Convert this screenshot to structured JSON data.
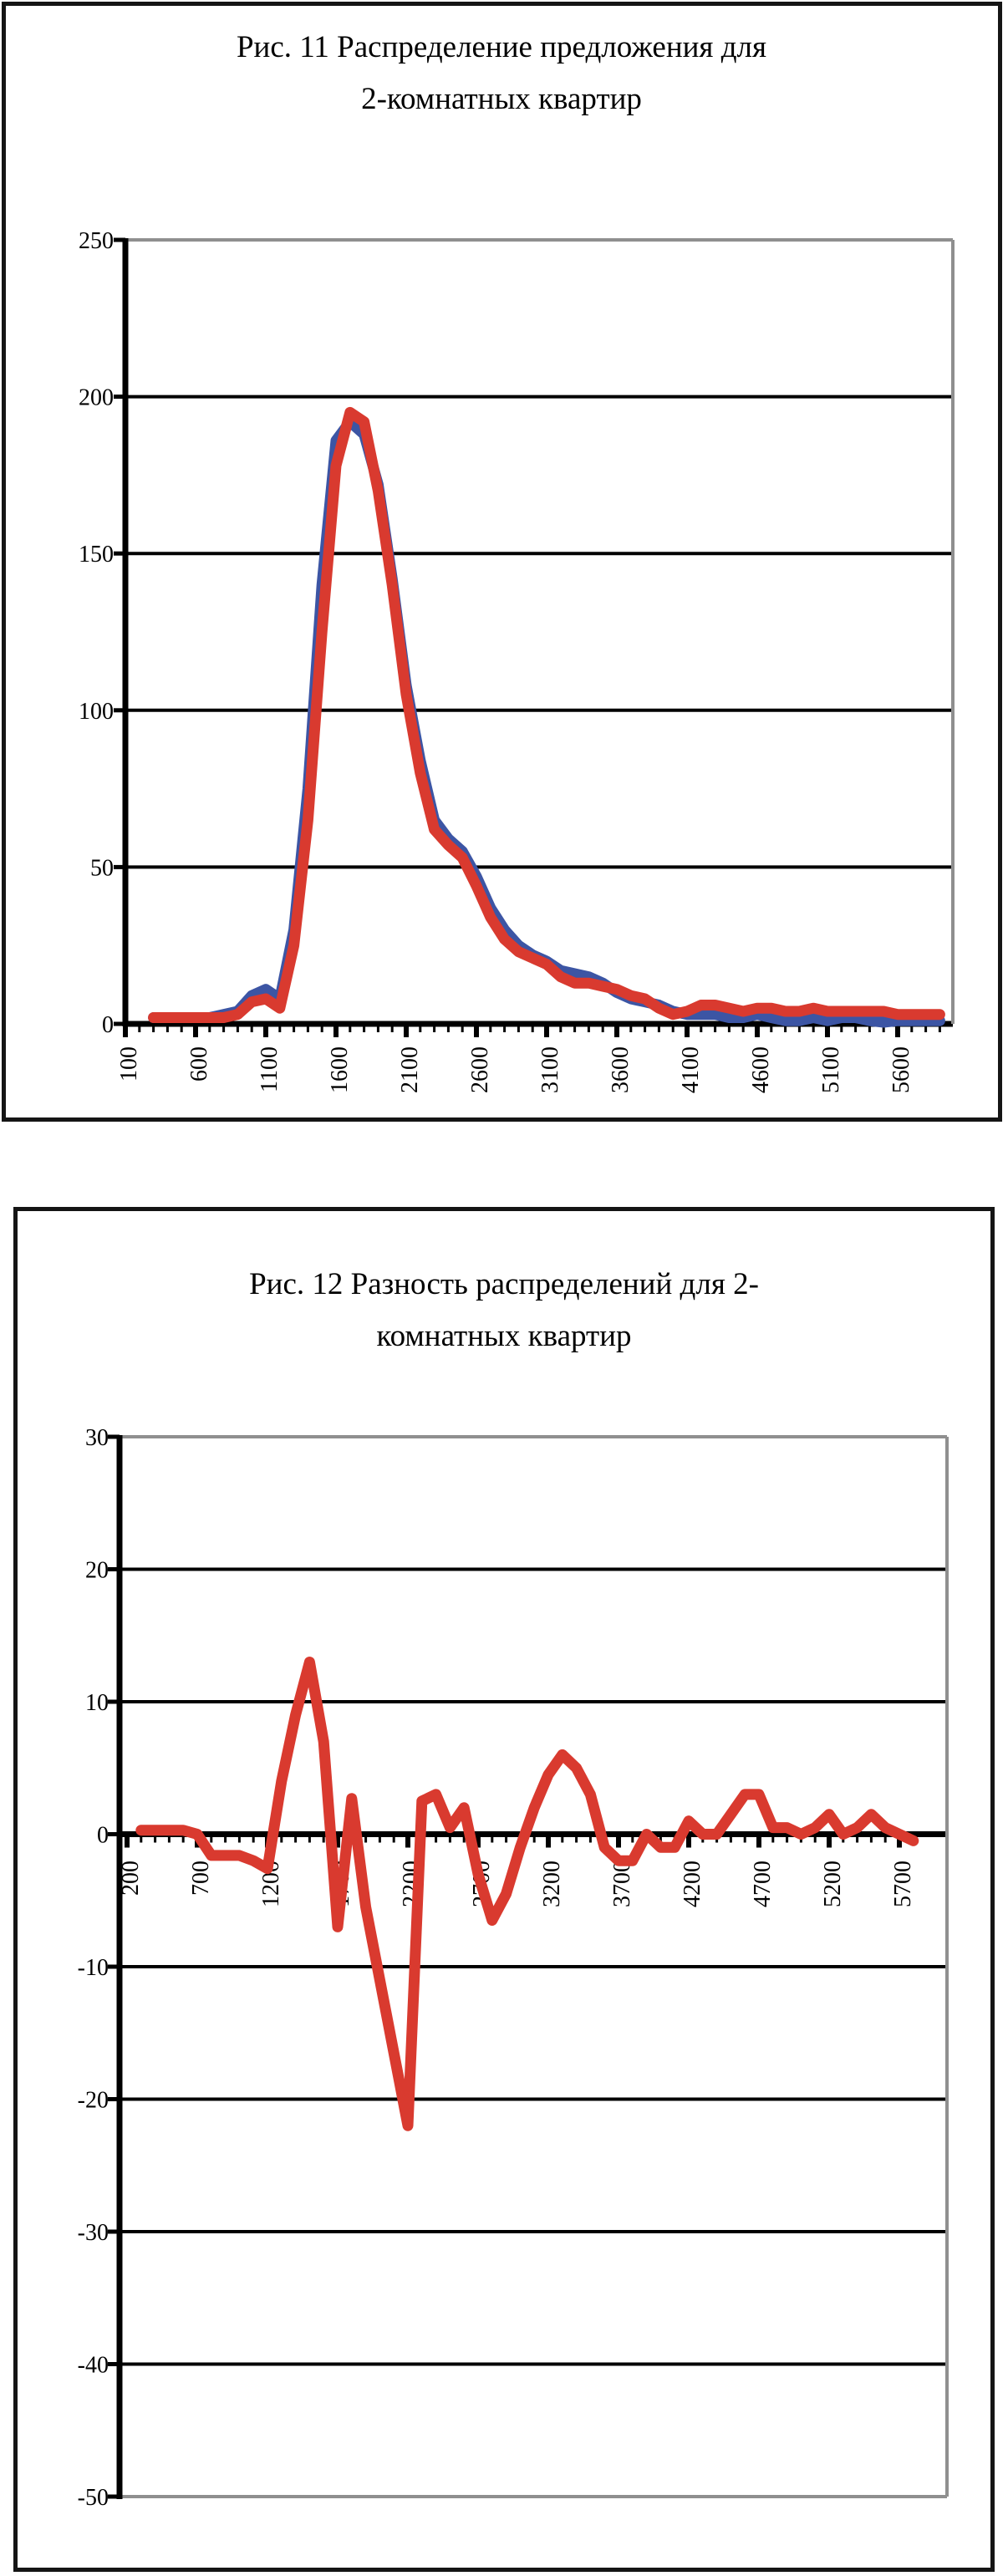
{
  "colors": {
    "series_red": "#d93a2f",
    "series_blue": "#3c55a4",
    "grid_black": "#000000",
    "border_gray": "#8f8f8f",
    "frame_black": "#151515",
    "background": "#ffffff"
  },
  "chart_data": [
    {
      "type": "line",
      "title_lines": [
        "Рис. 11 Распределение предложения для",
        "2-комнатных квартир"
      ],
      "ylabel": "",
      "xlabel": "",
      "ylim": [
        0,
        250
      ],
      "yticks": [
        0,
        50,
        100,
        150,
        200,
        250
      ],
      "xlim": [
        100,
        5950
      ],
      "xticks_labeled": [
        100,
        600,
        1100,
        1600,
        2100,
        2600,
        3100,
        3600,
        4100,
        4600,
        5100,
        5600
      ],
      "x_minor_step": 100,
      "grid": "horizontal",
      "legend": "none",
      "x": [
        300,
        400,
        500,
        600,
        700,
        800,
        900,
        1000,
        1100,
        1200,
        1300,
        1400,
        1500,
        1600,
        1700,
        1800,
        1900,
        2000,
        2100,
        2200,
        2300,
        2400,
        2500,
        2600,
        2700,
        2800,
        2900,
        3000,
        3100,
        3200,
        3300,
        3400,
        3500,
        3600,
        3700,
        3800,
        3900,
        4000,
        4100,
        4200,
        4300,
        4400,
        4500,
        4600,
        4700,
        4800,
        4900,
        5000,
        5100,
        5200,
        5300,
        5400,
        5500,
        5600,
        5700,
        5800,
        5900
      ],
      "series": [
        {
          "name": "series-blue",
          "color_key": "series_blue",
          "values": [
            2,
            2,
            2,
            2,
            2,
            3,
            4,
            9,
            11,
            8,
            30,
            75,
            140,
            186,
            192,
            188,
            172,
            142,
            108,
            84,
            65,
            59,
            55,
            47,
            37,
            30,
            25,
            22,
            20,
            17,
            16,
            15,
            13,
            10,
            8,
            7,
            6,
            4,
            3,
            3,
            3,
            2,
            2,
            3,
            2,
            1,
            1,
            2,
            1,
            2,
            2,
            1,
            0.5,
            1,
            1,
            1,
            1
          ]
        },
        {
          "name": "series-red",
          "color_key": "series_red",
          "values": [
            2,
            2,
            2,
            2,
            2,
            2,
            3,
            7,
            8,
            5,
            25,
            65,
            125,
            178,
            195,
            192,
            170,
            140,
            105,
            80,
            62,
            57,
            53,
            44,
            34,
            27,
            23,
            21,
            19,
            15,
            13,
            13,
            12,
            11,
            9,
            8,
            5,
            3,
            4,
            6,
            6,
            5,
            4,
            5,
            5,
            4,
            4,
            5,
            4,
            4,
            4,
            4,
            4,
            3,
            3,
            3,
            3
          ]
        }
      ]
    },
    {
      "type": "line",
      "title_lines": [
        "Рис. 12 Разность распределений для 2-",
        "комнатных квартир"
      ],
      "ylabel": "",
      "xlabel": "",
      "ylim": [
        -50,
        30
      ],
      "yticks": [
        30,
        20,
        10,
        0,
        -10,
        -20,
        -30,
        -40,
        -50
      ],
      "xlim": [
        200,
        5850
      ],
      "xticks_labeled": [
        200,
        700,
        1200,
        1700,
        2200,
        2700,
        3200,
        3700,
        4200,
        4700,
        5200,
        5700
      ],
      "x_minor_step": 100,
      "grid": "horizontal",
      "legend": "none",
      "x": [
        300,
        400,
        500,
        600,
        700,
        800,
        900,
        1000,
        1100,
        1200,
        1300,
        1400,
        1500,
        1600,
        1700,
        1800,
        1900,
        2000,
        2100,
        2200,
        2300,
        2400,
        2500,
        2600,
        2700,
        2800,
        2900,
        3000,
        3100,
        3200,
        3300,
        3400,
        3500,
        3600,
        3700,
        3800,
        3900,
        4000,
        4100,
        4200,
        4300,
        4400,
        4500,
        4600,
        4700,
        4800,
        4900,
        5000,
        5100,
        5200,
        5300,
        5400,
        5500,
        5600,
        5700,
        5800
      ],
      "series": [
        {
          "name": "difference-red",
          "color_key": "series_red",
          "values": [
            0.3,
            0.3,
            0.3,
            0.3,
            0,
            -1.6,
            -1.6,
            -1.6,
            -2,
            -2.6,
            4,
            9,
            13,
            7,
            -7,
            2.7,
            -5.5,
            -11,
            -16.5,
            -22,
            2.5,
            3,
            0.5,
            2,
            -3,
            -6.5,
            -4.5,
            -1,
            2,
            4.5,
            6,
            5,
            3,
            -1,
            -2,
            -2,
            0,
            -1,
            -1,
            1,
            0,
            0,
            1.5,
            3,
            3,
            0.5,
            0.5,
            0,
            0.5,
            1.5,
            0,
            0.5,
            1.5,
            0.5,
            0,
            -0.5
          ]
        }
      ]
    }
  ]
}
